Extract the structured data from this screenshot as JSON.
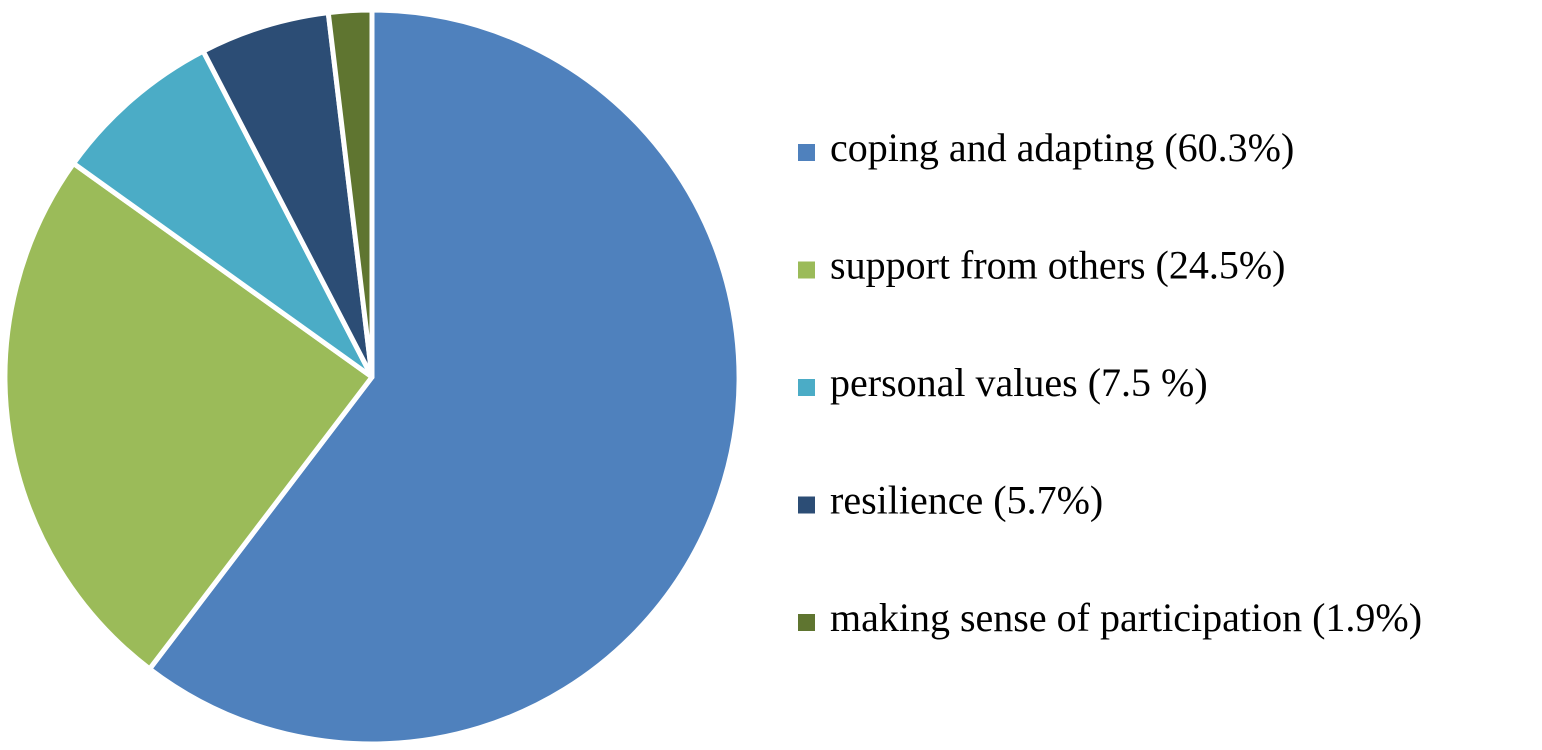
{
  "chart_data": {
    "type": "pie",
    "categories": [
      "coping and adapting (60.3%)",
      "support from others (24.5%)",
      "personal values (7.5 %)",
      "resilience (5.7%)",
      "making sense of participation (1.9%)"
    ],
    "values": [
      60.3,
      24.5,
      7.5,
      5.7,
      1.9
    ],
    "colors": [
      "#4f81bd",
      "#9bbb59",
      "#4bacc6",
      "#2c4d75",
      "#5f7530"
    ],
    "legend": "right"
  }
}
